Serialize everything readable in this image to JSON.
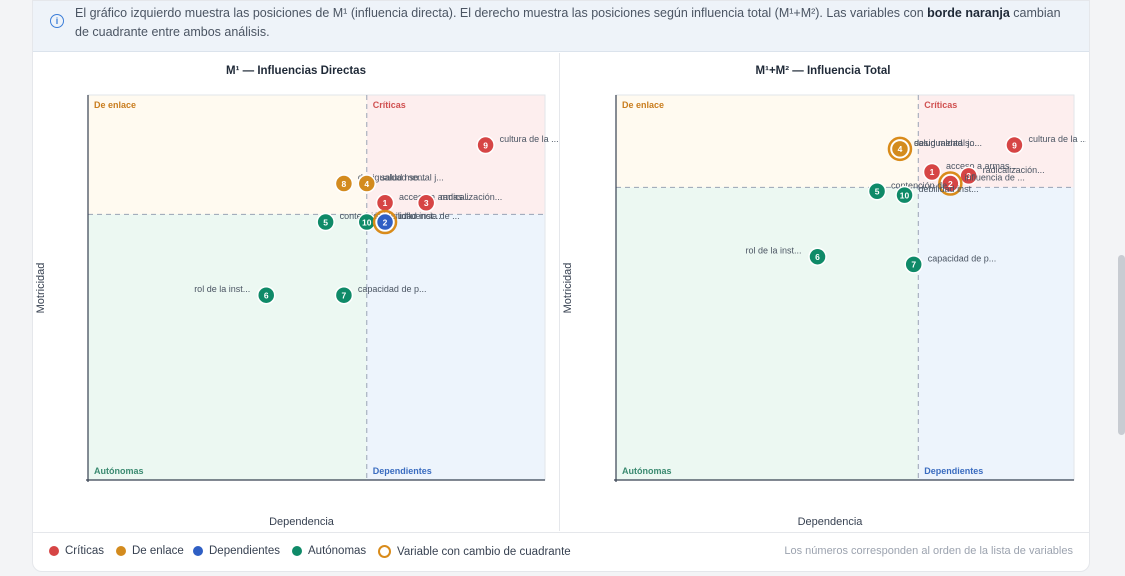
{
  "info": {
    "text_before": "El gráfico izquierdo muestra las posiciones de M¹ (influencia directa). El derecho muestra las posiciones según influencia total (M¹+M²). Las variables con ",
    "text_bold": "borde naranja",
    "text_after": " cambian de cuadrante entre ambos análisis."
  },
  "colors": {
    "Críticas": "#d64545",
    "De enlace": "#d38b1e",
    "Dependientes": "#2f5fc4",
    "Autónomas": "#0f8a68",
    "change_ring": "#d98b1a"
  },
  "quadrant_labels": {
    "enlace": "De enlace",
    "criticas": "Críticas",
    "autonomas": "Autónomas",
    "dependientes": "Dependientes"
  },
  "chart_data": [
    {
      "type": "scatter",
      "title": "M¹ — Influencias Directas",
      "xlabel": "Dependencia",
      "ylabel": "Motricidad",
      "xlim": [
        0,
        100
      ],
      "ylim": [
        0,
        100
      ],
      "x_threshold": 61,
      "y_threshold": 69,
      "points": [
        {
          "id": "9",
          "x": 87,
          "y": 87,
          "category": "Críticas",
          "label": "cultura de la ...",
          "changed": false
        },
        {
          "id": "8",
          "x": 56,
          "y": 77,
          "category": "De enlace",
          "label": "desigualdad so...",
          "changed": false
        },
        {
          "id": "4",
          "x": 61,
          "y": 77,
          "category": "De enlace",
          "label": "salud mental j...",
          "changed": false
        },
        {
          "id": "1",
          "x": 65,
          "y": 72,
          "category": "Críticas",
          "label": "acceso a armas...",
          "changed": false
        },
        {
          "id": "3",
          "x": 74,
          "y": 72,
          "category": "Críticas",
          "label": "radicalización...",
          "changed": false
        },
        {
          "id": "5",
          "x": 52,
          "y": 67,
          "category": "Autónomas",
          "label": "contención de ...",
          "changed": false
        },
        {
          "id": "10",
          "x": 61,
          "y": 67,
          "category": "Autónomas",
          "label": "debilidad inst...",
          "changed": false
        },
        {
          "id": "2",
          "x": 65,
          "y": 67,
          "category": "Dependientes",
          "label": "influencia de ...",
          "changed": true
        },
        {
          "id": "6",
          "x": 39,
          "y": 48,
          "category": "Autónomas",
          "label": "rol de la inst...",
          "changed": false
        },
        {
          "id": "7",
          "x": 56,
          "y": 48,
          "category": "Autónomas",
          "label": "capacidad de p...",
          "changed": false
        }
      ]
    },
    {
      "type": "scatter",
      "title": "M¹+M² — Influencia Total",
      "xlabel": "Dependencia",
      "ylabel": "Motricidad",
      "xlim": [
        0,
        100
      ],
      "ylim": [
        0,
        100
      ],
      "x_threshold": 66,
      "y_threshold": 76,
      "points": [
        {
          "id": "8",
          "x": 62,
          "y": 86,
          "category": "De enlace",
          "label": "desigualdad so...",
          "changed": true
        },
        {
          "id": "4",
          "x": 62,
          "y": 86,
          "category": "De enlace",
          "label": "salud mental j...",
          "changed": false
        },
        {
          "id": "9",
          "x": 87,
          "y": 87,
          "category": "Críticas",
          "label": "cultura de la ...",
          "changed": false
        },
        {
          "id": "1",
          "x": 69,
          "y": 80,
          "category": "Críticas",
          "label": "acceso a armas...",
          "changed": false
        },
        {
          "id": "3",
          "x": 77,
          "y": 79,
          "category": "Críticas",
          "label": "radicalización...",
          "changed": false
        },
        {
          "id": "2",
          "x": 73,
          "y": 77,
          "category": "Críticas",
          "label": "influencia de ...",
          "changed": true
        },
        {
          "id": "5",
          "x": 57,
          "y": 75,
          "category": "Autónomas",
          "label": "contención de ...",
          "changed": false
        },
        {
          "id": "10",
          "x": 63,
          "y": 74,
          "category": "Autónomas",
          "label": "debilidad inst...",
          "changed": false
        },
        {
          "id": "6",
          "x": 44,
          "y": 58,
          "category": "Autónomas",
          "label": "rol de la inst...",
          "changed": false
        },
        {
          "id": "7",
          "x": 65,
          "y": 56,
          "category": "Autónomas",
          "label": "capacidad de p...",
          "changed": false
        }
      ]
    }
  ],
  "legend": {
    "items": [
      {
        "label": "Críticas",
        "category": "Críticas"
      },
      {
        "label": "De enlace",
        "category": "De enlace"
      },
      {
        "label": "Dependientes",
        "category": "Dependientes"
      },
      {
        "label": "Autónomas",
        "category": "Autónomas"
      }
    ],
    "change_label": "Variable con cambio de cuadrante",
    "note": "Los números corresponden al orden de la lista de variables"
  }
}
